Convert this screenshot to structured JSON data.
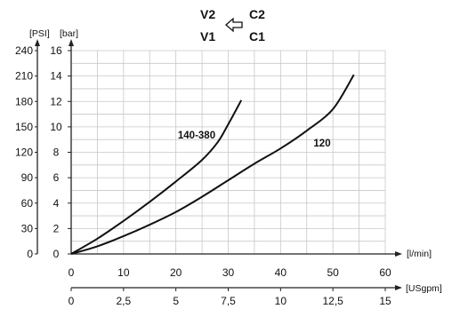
{
  "header": {
    "top_left": "V2",
    "top_right": "C2",
    "bottom_left": "V1",
    "bottom_right": "C1",
    "arrow_icon": "hollow-left-arrow-icon"
  },
  "chart_data": {
    "type": "line",
    "title": "",
    "grid": true,
    "x_axis_primary": {
      "unit_label": "[l/min]",
      "range": [
        0,
        60
      ],
      "ticks": [
        "0",
        "10",
        "20",
        "30",
        "40",
        "50",
        "60"
      ]
    },
    "x_axis_secondary": {
      "unit_label": "[USgpm]",
      "range": [
        0,
        15
      ],
      "ticks": [
        "0",
        "2,5",
        "5",
        "7,5",
        "10",
        "12,5",
        "15"
      ]
    },
    "y_axis_bar": {
      "unit_label": "[bar]",
      "range": [
        0,
        16
      ],
      "ticks": [
        "0",
        "2",
        "4",
        "6",
        "8",
        "10",
        "12",
        "14",
        "16"
      ]
    },
    "y_axis_psi": {
      "unit_label": "[PSI]",
      "range": [
        0,
        240
      ],
      "ticks": [
        "0",
        "30",
        "60",
        "90",
        "120",
        "150",
        "180",
        "210",
        "240"
      ]
    },
    "series": [
      {
        "name": "140-380",
        "x": [
          0,
          5,
          10,
          15,
          20,
          25,
          28,
          30,
          32.5
        ],
        "y": [
          0,
          1.2,
          2.6,
          4.1,
          5.7,
          7.4,
          8.8,
          10.2,
          12.1
        ]
      },
      {
        "name": "120",
        "x": [
          0,
          5,
          10,
          15,
          20,
          25,
          30,
          35,
          40,
          45,
          50,
          54
        ],
        "y": [
          0,
          0.6,
          1.4,
          2.3,
          3.3,
          4.5,
          5.8,
          7.1,
          8.3,
          9.7,
          11.4,
          14.1
        ]
      }
    ]
  }
}
